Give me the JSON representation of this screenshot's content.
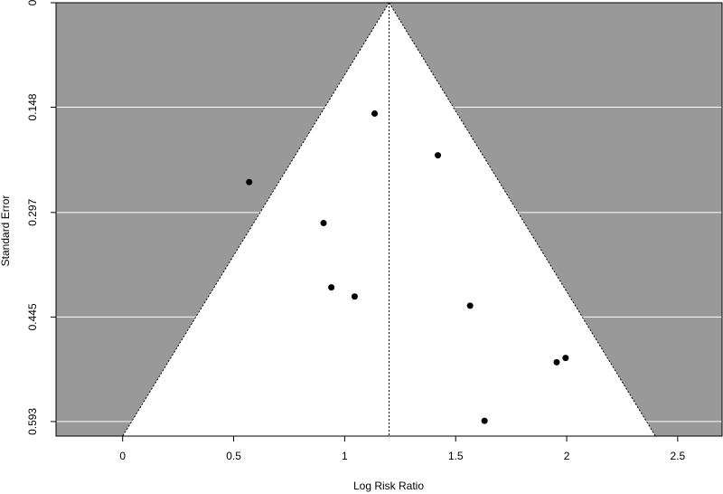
{
  "chart_data": {
    "type": "scatter",
    "title": "",
    "xlabel": "Log Risk Ratio",
    "ylabel": "Standard Error",
    "xlim": [
      -0.3,
      2.7
    ],
    "ylim": [
      0.6136,
      0
    ],
    "y_reversed": true,
    "x_ticks": [
      "0",
      "0.5",
      "1",
      "1.5",
      "2",
      "2.5"
    ],
    "x_tick_values": [
      0,
      0.5,
      1,
      1.5,
      2,
      2.5
    ],
    "y_ticks": [
      "0",
      "0.148",
      "0.297",
      "0.445",
      "0.593"
    ],
    "y_tick_values": [
      0,
      0.148,
      0.297,
      0.445,
      0.593
    ],
    "pooled_estimate": 1.2,
    "funnel": {
      "apex": [
        1.2,
        0
      ],
      "base_left": [
        0.0,
        0.6136
      ],
      "base_right": [
        2.4,
        0.6136
      ]
    },
    "points": [
      {
        "x": 0.57,
        "y": 0.254
      },
      {
        "x": 0.905,
        "y": 0.312
      },
      {
        "x": 0.94,
        "y": 0.403
      },
      {
        "x": 1.045,
        "y": 0.416
      },
      {
        "x": 1.135,
        "y": 0.157
      },
      {
        "x": 1.42,
        "y": 0.216
      },
      {
        "x": 1.565,
        "y": 0.429
      },
      {
        "x": 1.63,
        "y": 0.592
      },
      {
        "x": 1.955,
        "y": 0.509
      },
      {
        "x": 1.995,
        "y": 0.503
      }
    ],
    "grid": true,
    "colors": {
      "background": "#999999",
      "funnel": "#ffffff",
      "gridline": "#ffffff",
      "point": "#000000"
    }
  }
}
